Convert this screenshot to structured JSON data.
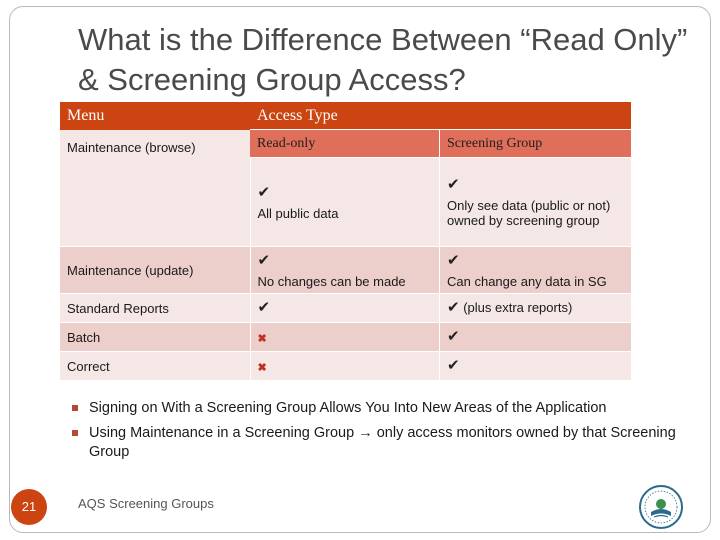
{
  "slide": {
    "title": "What is the Difference Between “Read Only” & Screening Group Access?",
    "page_number": "21",
    "footer": "AQS Screening Groups"
  },
  "table": {
    "header": {
      "menu": "Menu",
      "access_type": "Access Type",
      "read_only": "Read-only",
      "screening_group": "Screening Group"
    },
    "rows": [
      {
        "menu": "Maintenance (browse)",
        "read_only_mark": "✔",
        "read_only_text": "All public data",
        "sg_mark": "✔",
        "sg_text": "Only see data (public or not) owned by screening group"
      },
      {
        "menu": "Maintenance (update)",
        "read_only_mark": "✔",
        "read_only_text": "No changes can be made",
        "sg_mark": "✔",
        "sg_text": "Can change any data in SG"
      },
      {
        "menu": "Standard Reports",
        "read_only_mark": "✔",
        "sg_mark": "✔",
        "sg_text": " (plus extra reports)"
      },
      {
        "menu": "Batch",
        "read_only_mark": "✖",
        "sg_mark": "✔"
      },
      {
        "menu": "Correct",
        "read_only_mark": "✖",
        "sg_mark": "✔"
      }
    ]
  },
  "bullets": [
    "Signing on With a Screening Group Allows You Into New Areas of the Application",
    "Using Maintenance in a Screening Group → only access monitors owned by that Screening Group"
  ],
  "icons": {
    "check": "check-icon",
    "cross": "cross-icon",
    "logo": "epa-seal-logo"
  },
  "colors": {
    "header_bg": "#cc4411",
    "subheader_bg": "#df6f5a",
    "row_light": "#f4e7e5",
    "row_dark": "#eccecb",
    "bullet": "#b34a33"
  }
}
